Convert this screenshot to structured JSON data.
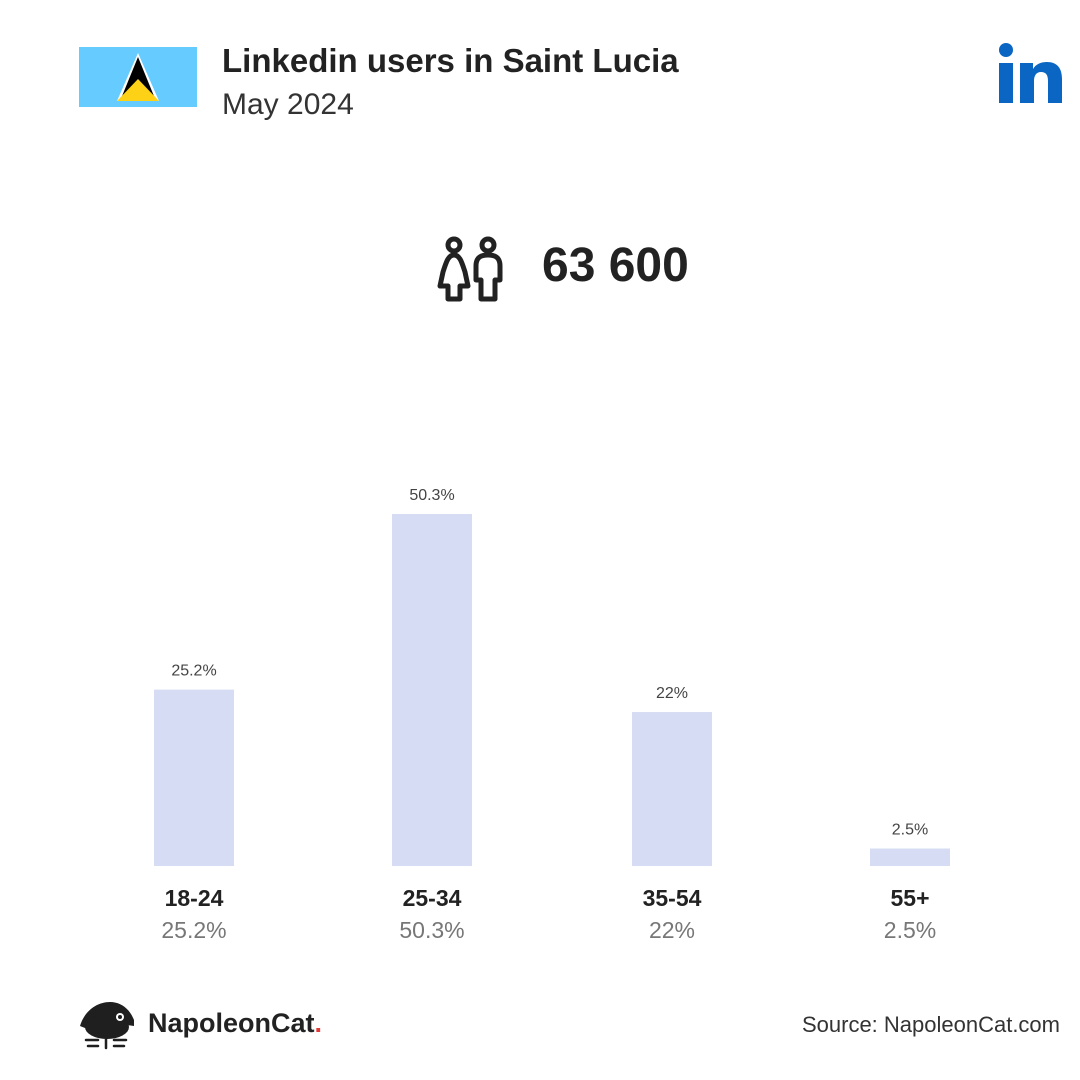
{
  "header": {
    "title": "Linkedin users in Saint Lucia",
    "subtitle": "May 2024",
    "flag_icon": "saint-lucia-flag-icon",
    "platform_icon": "linkedin-icon",
    "platform_text": "in"
  },
  "summary": {
    "icon": "users-icon",
    "total_label": "63 600"
  },
  "chart_data": {
    "type": "bar",
    "title": "",
    "xlabel": "",
    "ylabel": "",
    "categories": [
      "18-24",
      "25-34",
      "35-54",
      "55+"
    ],
    "values": [
      25.2,
      50.3,
      22,
      2.5
    ],
    "value_labels": [
      "25.2%",
      "50.3%",
      "22%",
      "2.5%"
    ],
    "ylim": [
      0,
      50.3
    ],
    "grid": false,
    "legend": "none"
  },
  "colors": {
    "bar": "#d6dcf3",
    "linkedin": "#0a66c2",
    "flag_blue": "#66ccff",
    "flag_gold": "#fcd116",
    "text_dark": "#222222",
    "text_light": "#777777"
  },
  "footer": {
    "brand_name": "NapoleonCat",
    "brand_dot": ".",
    "brand_icon": "napoleoncat-logo-icon",
    "source": "Source: NapoleonCat.com"
  }
}
